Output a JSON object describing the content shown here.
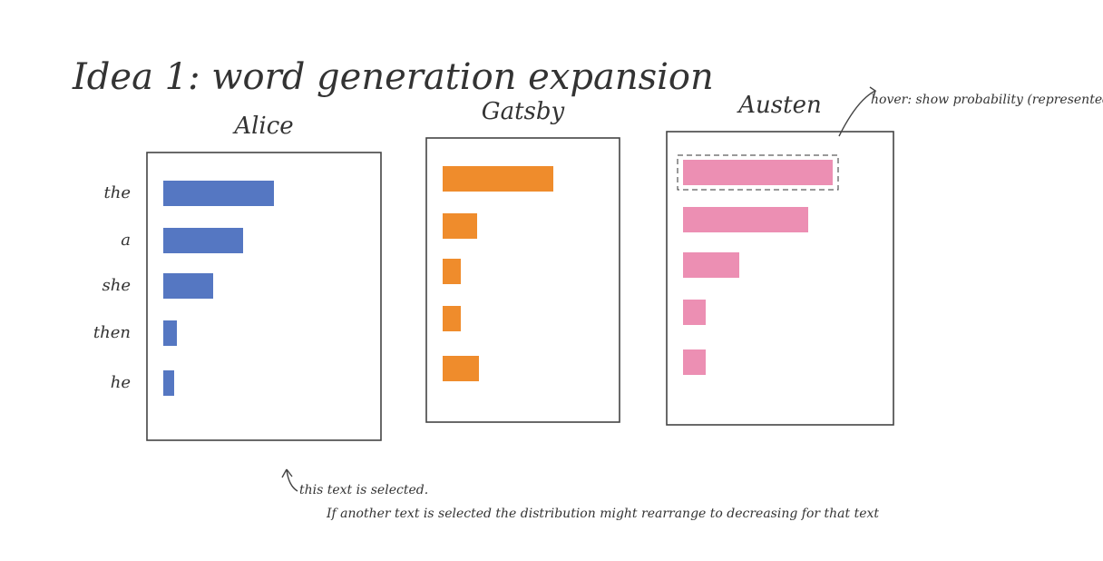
{
  "title": "Idea 1: word generation expansion",
  "annotations": [
    "hover: show probability (represented) and raw count",
    "this text is selected.",
    "If another text is selected the distribution might rearrange to decreasing for that text"
  ],
  "chart_data": [
    {
      "type": "bar",
      "orientation": "horizontal",
      "title": "Alice",
      "categories": [
        "the",
        "a",
        "she",
        "then",
        "he"
      ],
      "values": [
        122,
        88,
        55,
        15,
        12
      ],
      "color": "#5577c2"
    },
    {
      "type": "bar",
      "orientation": "horizontal",
      "title": "Gatsby",
      "values": [
        122,
        38,
        20,
        20,
        40
      ],
      "color": "#ef8c2c"
    },
    {
      "type": "bar",
      "orientation": "horizontal",
      "title": "Austen",
      "values": [
        165,
        138,
        62,
        25,
        25
      ],
      "color": "#ec8fb3",
      "hover_index": 0
    }
  ]
}
